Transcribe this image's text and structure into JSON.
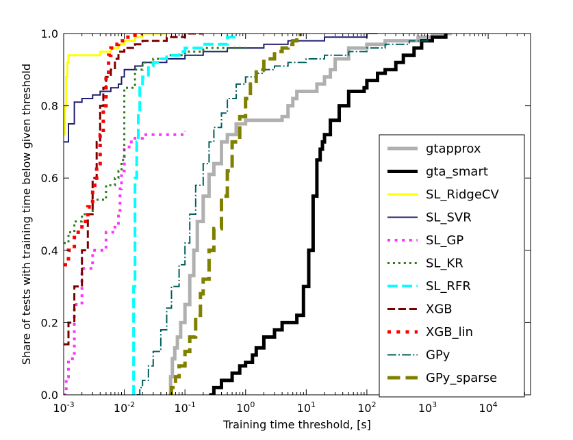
{
  "chart_data": {
    "type": "line",
    "title": "",
    "xlabel": "Training time threshold, [s]",
    "ylabel": "Share of tests with training time below given threshold",
    "xscale": "log",
    "xlim": [
      0.001,
      50000
    ],
    "ylim": [
      0.0,
      1.0
    ],
    "x_ticks": [
      {
        "value": 0.001,
        "base": "10",
        "exp": "-3"
      },
      {
        "value": 0.01,
        "base": "10",
        "exp": "-2"
      },
      {
        "value": 0.1,
        "base": "10",
        "exp": "-1"
      },
      {
        "value": 1,
        "base": "10",
        "exp": "0"
      },
      {
        "value": 10,
        "base": "10",
        "exp": "1"
      },
      {
        "value": 100,
        "base": "10",
        "exp": "2"
      },
      {
        "value": 1000,
        "base": "10",
        "exp": "3"
      },
      {
        "value": 10000,
        "base": "10",
        "exp": "4"
      }
    ],
    "y_ticks": [
      {
        "value": 0.0,
        "label": "0.0"
      },
      {
        "value": 0.2,
        "label": "0.2"
      },
      {
        "value": 0.4,
        "label": "0.4"
      },
      {
        "value": 0.6,
        "label": "0.6"
      },
      {
        "value": 0.8,
        "label": "0.8"
      },
      {
        "value": 1.0,
        "label": "1.0"
      }
    ],
    "legend_position": "right",
    "series": [
      {
        "name": "gtapprox",
        "color": "#b0b0b0",
        "dash": "solid",
        "width": 5,
        "x": [
          0.055,
          0.058,
          0.062,
          0.068,
          0.075,
          0.085,
          0.1,
          0.12,
          0.14,
          0.16,
          0.2,
          0.25,
          0.3,
          0.4,
          0.5,
          0.7,
          1.0,
          2.0,
          3.0,
          4.0,
          5.0,
          6.0,
          7.0,
          10.0,
          15.0,
          20.0,
          25.0,
          30.0,
          50.0,
          100.0,
          200.0,
          400.0,
          700.0,
          1200.0,
          2500.0
        ],
        "y": [
          0.0,
          0.05,
          0.1,
          0.13,
          0.16,
          0.2,
          0.25,
          0.33,
          0.4,
          0.48,
          0.55,
          0.61,
          0.64,
          0.7,
          0.72,
          0.75,
          0.76,
          0.76,
          0.76,
          0.77,
          0.8,
          0.82,
          0.84,
          0.84,
          0.86,
          0.88,
          0.9,
          0.93,
          0.96,
          0.97,
          0.98,
          0.98,
          0.99,
          1.0,
          1.0
        ]
      },
      {
        "name": "gta_smart",
        "color": "#000000",
        "dash": "solid",
        "width": 5,
        "x": [
          0.25,
          0.3,
          0.4,
          0.6,
          0.8,
          1.0,
          1.3,
          1.5,
          2.0,
          3.0,
          4.0,
          5.0,
          7.0,
          9.0,
          11.0,
          13.0,
          15.0,
          17.0,
          18.5,
          20.0,
          25.0,
          35.0,
          40.0,
          50.0,
          70.0,
          90.0,
          100.0,
          150.0,
          200.0,
          300.0,
          400.0,
          600.0,
          800.0,
          1200.0,
          2000.0
        ],
        "y": [
          0.0,
          0.02,
          0.04,
          0.06,
          0.08,
          0.09,
          0.11,
          0.13,
          0.16,
          0.18,
          0.2,
          0.2,
          0.22,
          0.3,
          0.4,
          0.55,
          0.65,
          0.68,
          0.7,
          0.72,
          0.76,
          0.8,
          0.8,
          0.84,
          0.84,
          0.85,
          0.87,
          0.89,
          0.9,
          0.92,
          0.94,
          0.96,
          0.98,
          0.99,
          1.0
        ]
      },
      {
        "name": "SL_RidgeCV",
        "color": "#ffff00",
        "dash": "solid",
        "width": 3,
        "x": [
          0.001,
          0.00105,
          0.0011,
          0.00115,
          0.0012,
          0.0015,
          0.002,
          0.004,
          0.006,
          0.008,
          0.01,
          0.015,
          0.02,
          0.03,
          0.04,
          0.05
        ],
        "y": [
          0.72,
          0.8,
          0.88,
          0.92,
          0.94,
          0.94,
          0.94,
          0.95,
          0.96,
          0.97,
          0.98,
          0.99,
          1.0,
          1.0,
          1.0,
          1.0
        ]
      },
      {
        "name": "SL_SVR",
        "color": "#1c1c6e",
        "dash": "solid",
        "width": 2,
        "x": [
          0.001,
          0.0012,
          0.0015,
          0.002,
          0.003,
          0.004,
          0.005,
          0.006,
          0.008,
          0.009,
          0.01,
          0.015,
          0.02,
          0.03,
          0.05,
          0.1,
          0.2,
          0.5,
          1.0,
          2.0,
          5.0,
          10.0,
          20.0,
          50.0,
          100.0,
          150.0
        ],
        "y": [
          0.7,
          0.75,
          0.81,
          0.82,
          0.83,
          0.84,
          0.84,
          0.85,
          0.86,
          0.88,
          0.9,
          0.91,
          0.92,
          0.92,
          0.93,
          0.94,
          0.95,
          0.96,
          0.96,
          0.97,
          0.98,
          0.98,
          0.99,
          0.99,
          1.0,
          1.0
        ]
      },
      {
        "name": "SL_GP",
        "color": "#ff33ff",
        "dash": "dotted",
        "width": 4,
        "x": [
          0.001,
          0.0011,
          0.0012,
          0.0015,
          0.002,
          0.003,
          0.005,
          0.007,
          0.008,
          0.0085,
          0.009,
          0.01,
          0.012,
          0.015,
          0.02,
          0.03,
          0.05,
          0.1
        ],
        "y": [
          0.0,
          0.05,
          0.1,
          0.25,
          0.35,
          0.4,
          0.45,
          0.47,
          0.5,
          0.57,
          0.62,
          0.68,
          0.7,
          0.71,
          0.72,
          0.72,
          0.72,
          0.73
        ]
      },
      {
        "name": "SL_KR",
        "color": "#2a7a1a",
        "dash": "dotted",
        "width": 3,
        "x": [
          0.001,
          0.0012,
          0.0015,
          0.002,
          0.003,
          0.005,
          0.007,
          0.008,
          0.009,
          0.01,
          0.015,
          0.02,
          0.03,
          0.05,
          0.1,
          0.2,
          0.5,
          1.0
        ],
        "y": [
          0.42,
          0.45,
          0.48,
          0.5,
          0.54,
          0.58,
          0.6,
          0.62,
          0.65,
          0.85,
          0.9,
          0.92,
          0.93,
          0.94,
          0.95,
          0.96,
          0.96,
          0.97
        ]
      },
      {
        "name": "SL_RFR",
        "color": "#00ffff",
        "dash": "dashed",
        "width": 4,
        "x": [
          0.014,
          0.0142,
          0.015,
          0.016,
          0.017,
          0.018,
          0.02,
          0.025,
          0.03,
          0.04,
          0.05,
          0.08,
          0.1,
          0.2,
          0.5,
          0.7
        ],
        "y": [
          0.0,
          0.3,
          0.6,
          0.7,
          0.78,
          0.85,
          0.88,
          0.91,
          0.92,
          0.93,
          0.94,
          0.95,
          0.96,
          0.97,
          0.99,
          1.0
        ]
      },
      {
        "name": "XGB",
        "color": "#7a0000",
        "dash": "dashed",
        "width": 3,
        "x": [
          0.001,
          0.0012,
          0.0015,
          0.002,
          0.0025,
          0.003,
          0.0035,
          0.004,
          0.0045,
          0.005,
          0.006,
          0.007,
          0.008,
          0.01,
          0.015,
          0.02,
          0.05,
          0.1,
          0.2
        ],
        "y": [
          0.14,
          0.2,
          0.3,
          0.4,
          0.5,
          0.6,
          0.7,
          0.8,
          0.85,
          0.88,
          0.9,
          0.93,
          0.95,
          0.96,
          0.97,
          0.98,
          0.99,
          1.0,
          1.0
        ]
      },
      {
        "name": "XGB_lin",
        "color": "#ff0000",
        "dash": "dotted",
        "width": 5,
        "x": [
          0.001,
          0.0012,
          0.0015,
          0.002,
          0.0025,
          0.003,
          0.0035,
          0.004,
          0.0045,
          0.005,
          0.0055,
          0.006,
          0.007,
          0.008,
          0.01,
          0.015,
          0.02
        ],
        "y": [
          0.36,
          0.4,
          0.45,
          0.48,
          0.52,
          0.58,
          0.64,
          0.72,
          0.8,
          0.88,
          0.94,
          0.96,
          0.97,
          0.98,
          0.99,
          1.0,
          1.0
        ]
      },
      {
        "name": "GPy",
        "color": "#005f5f",
        "dash": "dashdot",
        "width": 2,
        "x": [
          0.016,
          0.018,
          0.02,
          0.025,
          0.03,
          0.04,
          0.05,
          0.06,
          0.08,
          0.1,
          0.12,
          0.15,
          0.2,
          0.25,
          0.3,
          0.4,
          0.5,
          0.7,
          1.0,
          1.5,
          2.0,
          3.0,
          5.0,
          10.0,
          20.0,
          50.0,
          100.0,
          200.0,
          500.0,
          1000.0
        ],
        "y": [
          0.0,
          0.02,
          0.04,
          0.08,
          0.12,
          0.18,
          0.24,
          0.3,
          0.36,
          0.42,
          0.5,
          0.58,
          0.64,
          0.7,
          0.74,
          0.78,
          0.82,
          0.86,
          0.88,
          0.89,
          0.9,
          0.91,
          0.92,
          0.93,
          0.94,
          0.95,
          0.96,
          0.97,
          0.98,
          1.0
        ]
      },
      {
        "name": "GPy_sparse",
        "color": "#808000",
        "dash": "dashed",
        "width": 5,
        "x": [
          0.055,
          0.06,
          0.07,
          0.08,
          0.1,
          0.12,
          0.15,
          0.18,
          0.2,
          0.25,
          0.3,
          0.4,
          0.5,
          0.6,
          0.8,
          1.0,
          1.2,
          1.5,
          2.0,
          3.0,
          4.0,
          5.0,
          6.0,
          7.0,
          8.0
        ],
        "y": [
          0.0,
          0.02,
          0.05,
          0.08,
          0.12,
          0.16,
          0.22,
          0.28,
          0.32,
          0.4,
          0.46,
          0.55,
          0.62,
          0.7,
          0.77,
          0.82,
          0.86,
          0.9,
          0.93,
          0.95,
          0.96,
          0.97,
          0.98,
          0.99,
          1.0
        ]
      }
    ]
  }
}
